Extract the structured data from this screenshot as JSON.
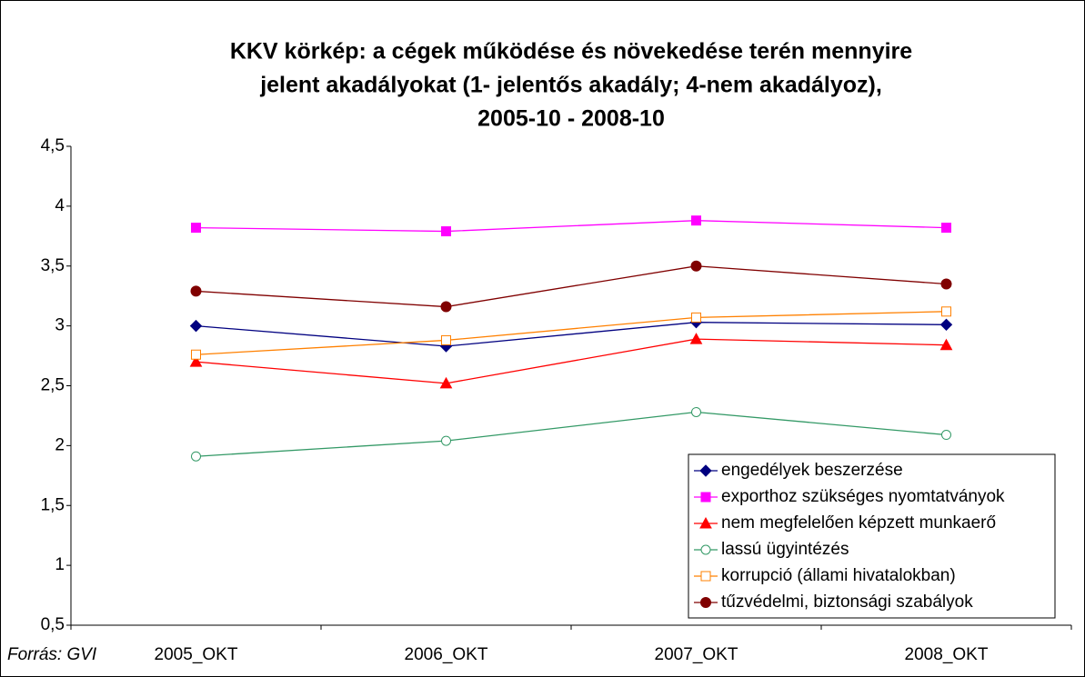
{
  "chart_data": {
    "type": "line",
    "title": [
      "KKV körkép: a cégek működése és növekedése terén mennyire",
      "jelent akadályokat (1- jelentős akadály; 4-nem akadályoz),",
      "2005-10 - 2008-10"
    ],
    "source": "Forrás: GVI",
    "categories": [
      "2005_OKT",
      "2006_OKT",
      "2007_OKT",
      "2008_OKT"
    ],
    "series": [
      {
        "name": "engedélyek beszerzése",
        "color": "#000080",
        "marker": "diamond",
        "values": [
          3.0,
          2.83,
          3.03,
          3.01
        ]
      },
      {
        "name": "exporthoz szükséges nyomtatványok",
        "color": "#ff00ff",
        "marker": "square",
        "values": [
          3.82,
          3.79,
          3.88,
          3.82
        ]
      },
      {
        "name": "nem megfelelően képzett munkaerő",
        "color": "#ff0000",
        "marker": "triangle",
        "values": [
          2.7,
          2.52,
          2.89,
          2.84
        ]
      },
      {
        "name": "lassú ügyintézés",
        "color": "#339966",
        "marker": "circle-open",
        "values": [
          1.91,
          2.04,
          2.28,
          2.09
        ]
      },
      {
        "name": "korrupció (állami hivatalokban)",
        "color": "#ff8000",
        "marker": "square-open",
        "values": [
          2.76,
          2.88,
          3.07,
          3.12
        ]
      },
      {
        "name": "tűzvédelmi, biztonsági szabályok",
        "color": "#800000",
        "marker": "circle",
        "values": [
          3.29,
          3.16,
          3.5,
          3.35
        ]
      }
    ],
    "ylim": [
      0.5,
      4.5
    ],
    "yticks": [
      {
        "value": 0.5,
        "label": "0,5"
      },
      1,
      {
        "value": 1.5,
        "label": "1,5"
      },
      2,
      {
        "value": 2.5,
        "label": "2,5"
      },
      3,
      {
        "value": 3.5,
        "label": "3,5"
      },
      4,
      {
        "value": 4.5,
        "label": "4,5"
      }
    ],
    "legend": "lower right"
  }
}
